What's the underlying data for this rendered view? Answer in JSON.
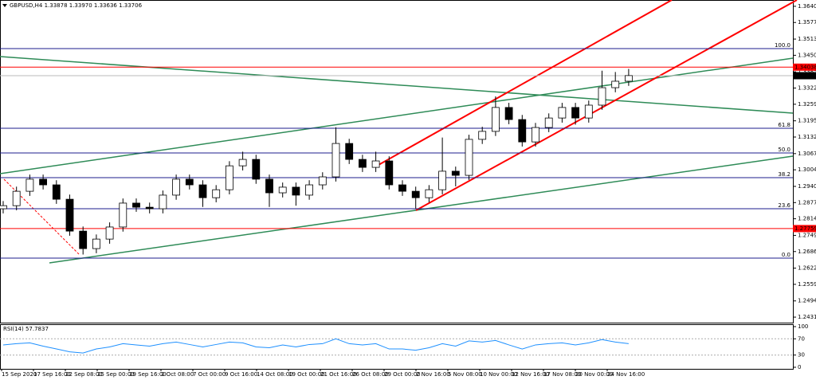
{
  "chart_data": {
    "type": "candlestick",
    "title": "GBPUSD,H4  1.33878 1.33970 1.33636 1.33706",
    "categories": [
      "15 Sep 2020",
      "17 Sep 16:00",
      "22 Sep 08:00",
      "25 Sep 00:00",
      "29 Sep 16:00",
      "2 Oct 08:00",
      "7 Oct 00:00",
      "9 Oct 16:00",
      "14 Oct 08:00",
      "19 Oct 00:00",
      "21 Oct 16:00",
      "26 Oct 08:00",
      "29 Oct 00:00",
      "2 Nov 16:00",
      "5 Nov 08:00",
      "10 Nov 00:00",
      "12 Nov 16:00",
      "17 Nov 08:00",
      "20 Nov 00:00",
      "24 Nov 16:00"
    ],
    "open": [
      1.2853,
      1.2865,
      1.2921,
      1.2968,
      1.2946,
      1.289,
      1.2766,
      1.2698,
      1.2735,
      1.2782,
      1.2875,
      1.2859,
      1.2853,
      1.2906,
      1.2968,
      1.2946,
      1.2896,
      1.2927,
      1.302,
      1.3045,
      1.2968,
      1.2915,
      1.2937,
      1.2906,
      1.2946,
      1.2977,
      1.3107,
      1.3045,
      1.3014,
      1.3039,
      1.2946,
      1.2921,
      1.2896,
      1.2927,
      1.2999,
      1.2983,
      1.3123,
      1.3154,
      1.3247,
      1.32,
      1.3113,
      1.3169,
      1.3206,
      1.3247,
      1.3206,
      1.3256,
      1.3324,
      1.3349
    ],
    "high": [
      1.2883,
      1.2939,
      1.2986,
      1.2986,
      1.2964,
      1.2908,
      1.2784,
      1.2753,
      1.28,
      1.2893,
      1.2893,
      1.2877,
      1.2924,
      1.2986,
      1.2986,
      1.2964,
      1.2945,
      1.3038,
      1.3075,
      1.3063,
      1.2986,
      1.2955,
      1.2955,
      1.2964,
      1.2995,
      1.317,
      1.3125,
      1.3063,
      1.3075,
      1.3057,
      1.2964,
      1.2939,
      1.2945,
      1.313,
      1.3017,
      1.3141,
      1.3172,
      1.329,
      1.3265,
      1.3218,
      1.3187,
      1.3224,
      1.3265,
      1.3265,
      1.3274,
      1.339,
      1.3385,
      1.3397
    ],
    "low": [
      1.2835,
      1.2847,
      1.2903,
      1.2928,
      1.2872,
      1.2748,
      1.2675,
      1.268,
      1.2717,
      1.2764,
      1.2841,
      1.2835,
      1.2835,
      1.2888,
      1.2928,
      1.286,
      1.2878,
      1.2909,
      1.3002,
      1.295,
      1.286,
      1.2897,
      1.2865,
      1.2888,
      1.2928,
      1.2959,
      1.3027,
      1.2996,
      1.2996,
      1.2928,
      1.2903,
      1.2854,
      1.2878,
      1.2909,
      1.294,
      1.2965,
      1.3105,
      1.3136,
      1.3182,
      1.3095,
      1.3095,
      1.3151,
      1.3188,
      1.318,
      1.3188,
      1.3238,
      1.3306,
      1.3331
    ],
    "close": [
      1.2865,
      1.2921,
      1.2968,
      1.2946,
      1.289,
      1.2766,
      1.2698,
      1.2735,
      1.2782,
      1.2875,
      1.2859,
      1.2853,
      1.2906,
      1.2968,
      1.2946,
      1.2896,
      1.2927,
      1.302,
      1.3045,
      1.2968,
      1.2915,
      1.2937,
      1.2906,
      1.2946,
      1.2977,
      1.3107,
      1.3045,
      1.3014,
      1.3039,
      1.2946,
      1.2921,
      1.2896,
      1.2927,
      1.2999,
      1.2983,
      1.3123,
      1.3154,
      1.3247,
      1.32,
      1.3113,
      1.3169,
      1.3206,
      1.3247,
      1.3206,
      1.3256,
      1.3324,
      1.3349,
      1.3371
    ],
    "ylim": [
      1.241,
      1.3665
    ],
    "yticks": [
      1.36405,
      1.35775,
      {
        "value": 1.3513,
        "label": "1.35130"
      },
      {
        "value": 1.345,
        "label": "1.34500"
      },
      1.33855,
      1.33225,
      1.32595,
      {
        "value": 1.3195,
        "label": "1.31950"
      },
      {
        "value": 1.3132,
        "label": "1.31320"
      },
      1.30675,
      1.30045,
      {
        "value": 1.294,
        "label": "1.29400"
      },
      {
        "value": 1.2877,
        "label": "1.28770"
      },
      {
        "value": 1.2814,
        "label": "1.28140"
      },
      1.27495,
      1.26865,
      {
        "value": 1.2622,
        "label": "1.26220"
      },
      {
        "value": 1.2559,
        "label": "1.25590"
      },
      1.24945,
      1.24315
    ],
    "fib_levels": [
      {
        "value": 1.3476,
        "label": "100.0"
      },
      {
        "value": 1.3166,
        "label": "61.8"
      },
      {
        "value": 1.307,
        "label": "50.0"
      },
      {
        "value": 1.2974,
        "label": "38.2"
      },
      {
        "value": 1.2853,
        "label": "23.6"
      },
      {
        "value": 1.2661,
        "label": "0.0"
      }
    ],
    "price_lines": [
      {
        "value": 1.34038,
        "color": "#ff0000"
      },
      {
        "value": 1.33706,
        "color": "#000000"
      },
      {
        "value": 1.27759,
        "color": "#ff0000"
      }
    ],
    "rsi": {
      "label": "RSI(14) 57.7837",
      "color": "#1e90ff",
      "ylim": [
        0,
        100
      ],
      "yticks": [
        100,
        70,
        30,
        0
      ],
      "levels": [
        70,
        30
      ],
      "values": [
        55,
        58,
        60,
        52,
        45,
        38,
        35,
        45,
        50,
        58,
        55,
        52,
        58,
        62,
        56,
        50,
        56,
        62,
        60,
        50,
        48,
        55,
        50,
        56,
        58,
        70,
        58,
        55,
        58,
        45,
        45,
        42,
        48,
        58,
        52,
        65,
        62,
        66,
        55,
        45,
        55,
        58,
        60,
        55,
        60,
        68,
        62,
        58
      ]
    }
  }
}
